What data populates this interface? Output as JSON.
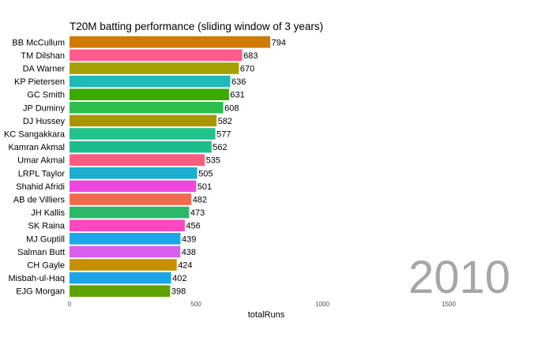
{
  "chart_data": {
    "type": "bar",
    "orientation": "horizontal",
    "title": "T20M  batting performance (sliding window of 3 years)",
    "xlabel": "totalRuns",
    "ylabel": "",
    "xlim": [
      0,
      1800
    ],
    "xticks": [
      0,
      500,
      1000,
      1500
    ],
    "xtick_labels": [
      "0",
      "500",
      "1000",
      "1500"
    ],
    "grid": false,
    "year_label": "2010",
    "categories": [
      "BB McCullum",
      "TM Dilshan",
      "DA Warner",
      "KP Pietersen",
      "GC Smith",
      "JP Duminy",
      "DJ Hussey",
      "KC Sangakkara",
      "Kamran Akmal",
      "Umar Akmal",
      "LRPL Taylor",
      "Shahid Afridi",
      "AB de Villiers",
      "JH Kallis",
      "SK Raina",
      "MJ Guptill",
      "Salman Butt",
      "CH Gayle",
      "Misbah-ul-Haq",
      "EJG Morgan"
    ],
    "values": [
      794,
      683,
      670,
      636,
      631,
      608,
      582,
      577,
      562,
      535,
      505,
      501,
      482,
      473,
      456,
      439,
      438,
      424,
      402,
      398
    ],
    "colors": [
      "#D07A00",
      "#FF5A8C",
      "#A5A000",
      "#1FBAB8",
      "#39AA00",
      "#2CBE4E",
      "#A99500",
      "#22C28C",
      "#1CBD8D",
      "#FA5C80",
      "#1CAED0",
      "#EE47E0",
      "#F06A4E",
      "#2AB868",
      "#FF48C0",
      "#1DA7EB",
      "#D85FF0",
      "#C59000",
      "#1CA4E8",
      "#60A200"
    ]
  }
}
